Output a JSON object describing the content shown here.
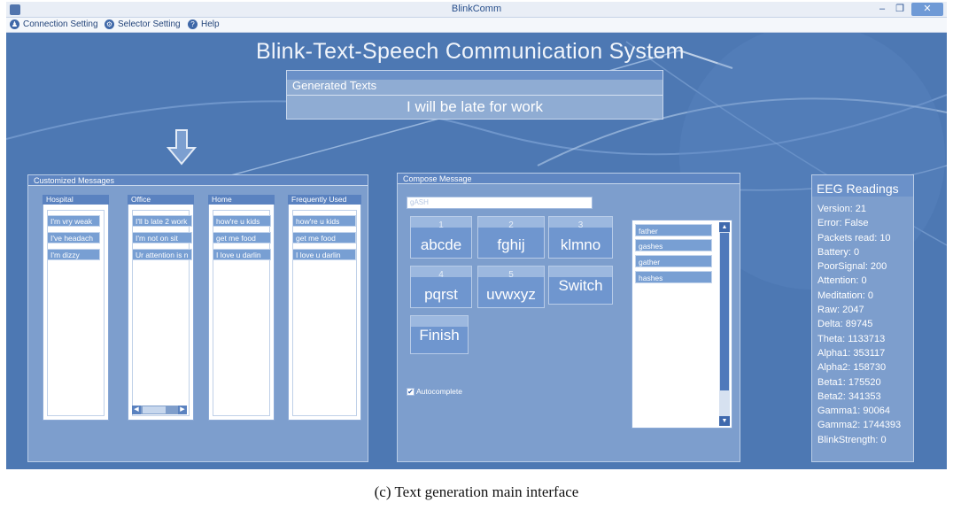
{
  "window": {
    "title": "BlinkComm",
    "controls": {
      "minimize": "–",
      "maximize": "❐",
      "close": "✕"
    }
  },
  "menu": {
    "items": [
      {
        "label": "Connection Setting",
        "icon": "person-icon"
      },
      {
        "label": "Selector Setting",
        "icon": "gear-icon"
      },
      {
        "label": "Help",
        "icon": "help-icon"
      }
    ]
  },
  "system_title": "Blink-Text-Speech Communication System",
  "generated": {
    "label": "Generated  Texts",
    "text": "I will be late for work"
  },
  "customized": {
    "title": "Customized Messages",
    "columns": [
      {
        "name": "Hospital",
        "items": [
          "I'm vry weak",
          "I've headach",
          "I'm dizzy"
        ]
      },
      {
        "name": "Office",
        "items": [
          "I'll b late 2 work",
          "I'm not on sit",
          "Ur attention is n"
        ]
      },
      {
        "name": "Home",
        "items": [
          "how're u kids",
          "get me food",
          "I love u darlin"
        ]
      },
      {
        "name": "Frequently Used",
        "items": [
          "how're u kids",
          "get me food",
          "I love u darlin"
        ]
      }
    ],
    "scroll_left": "◀",
    "scroll_right": "▶"
  },
  "compose": {
    "title": "Compose Message",
    "input_value": "gASH",
    "keys": [
      {
        "num": "1",
        "label": "abcde"
      },
      {
        "num": "2",
        "label": "fghij"
      },
      {
        "num": "3",
        "label": "klmno"
      },
      {
        "num": "4",
        "label": "pqrst"
      },
      {
        "num": "5",
        "label": "uvwxyz"
      },
      {
        "num": "",
        "label": "Switch"
      },
      {
        "num": "",
        "label": "Finish"
      }
    ],
    "suggestions": [
      "father",
      "gashes",
      "gather",
      "hashes"
    ],
    "scroll_up": "▲",
    "scroll_down": "▼",
    "autocomplete_label": "Autocomplete",
    "autocomplete_checked": "✔"
  },
  "eeg": {
    "title": "EEG Readings",
    "lines": [
      "Version: 21",
      "Error: False",
      "Packets read: 10",
      "Battery: 0",
      "PoorSignal: 200",
      "Attention: 0",
      "Meditation: 0",
      "Raw: 2047",
      "Delta: 89745",
      "Theta: 1133713",
      "Alpha1: 353117",
      "Alpha2: 158730",
      "Beta1: 175520",
      "Beta2: 341353",
      "Gamma1: 90064",
      "Gamma2: 1744393",
      "BlinkStrength: 0"
    ]
  },
  "caption": "(c) Text generation main interface",
  "colors": {
    "background": "#4d78b3",
    "panel": "#7d9ecd",
    "accent": "#6f96cf"
  }
}
